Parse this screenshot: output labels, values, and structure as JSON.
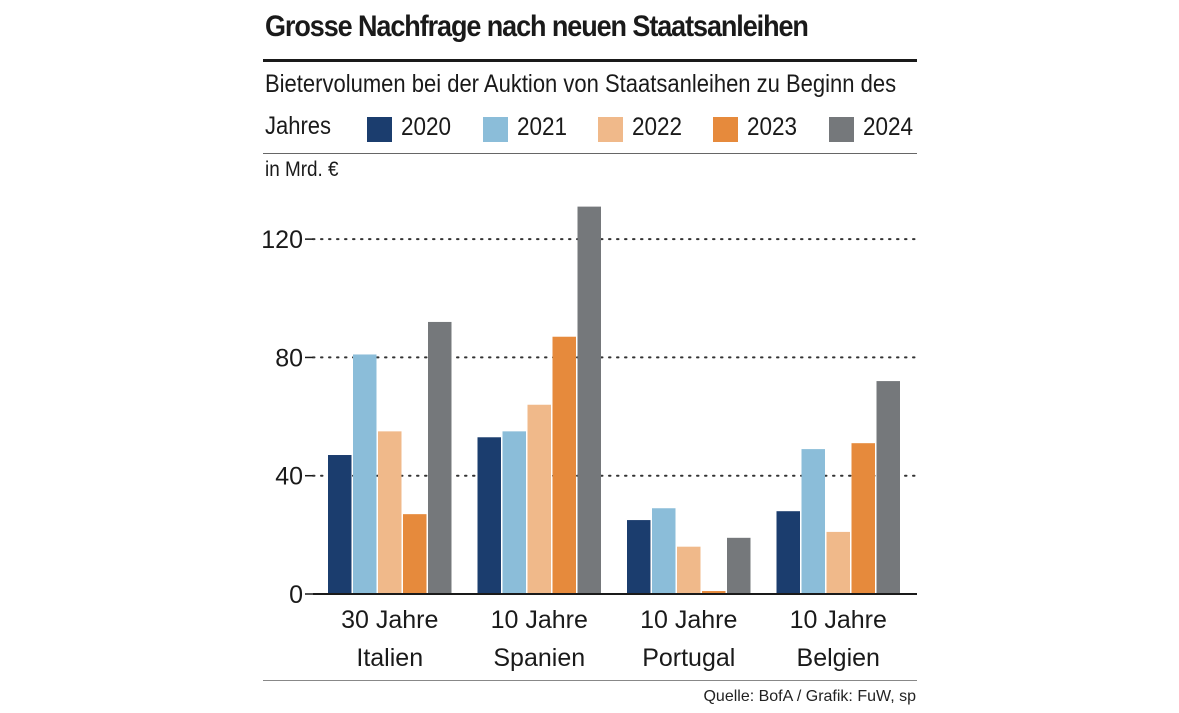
{
  "chart_data": {
    "type": "bar",
    "title": "Grosse Nachfrage nach neuen Staatsanleihen",
    "subtitle_line1": "Bietervolumen bei der Auktion von Staatsanleihen zu Beginn des",
    "subtitle_line2": "Jahres",
    "unit": "in Mrd. €",
    "categories": [
      [
        "30 Jahre",
        "Italien"
      ],
      [
        "10 Jahre",
        "Spanien"
      ],
      [
        "10 Jahre",
        "Portugal"
      ],
      [
        "10 Jahre",
        "Belgien"
      ]
    ],
    "series": [
      {
        "name": "2020",
        "color": "#1b3d6e",
        "values": [
          47,
          53,
          25,
          28
        ]
      },
      {
        "name": "2021",
        "color": "#8bbdd9",
        "values": [
          81,
          55,
          29,
          49
        ]
      },
      {
        "name": "2022",
        "color": "#f0b98a",
        "values": [
          55,
          64,
          16,
          21
        ]
      },
      {
        "name": "2023",
        "color": "#e68a3c",
        "values": [
          27,
          87,
          1,
          51
        ]
      },
      {
        "name": "2024",
        "color": "#75787b",
        "values": [
          92,
          131,
          19,
          72
        ]
      }
    ],
    "yticks": [
      "0",
      "40",
      "80",
      "120"
    ],
    "ylim": [
      0,
      140
    ],
    "grid": "dotted",
    "legend_position": "top"
  },
  "source": "Quelle: BofA / Grafik: FuW, sp"
}
